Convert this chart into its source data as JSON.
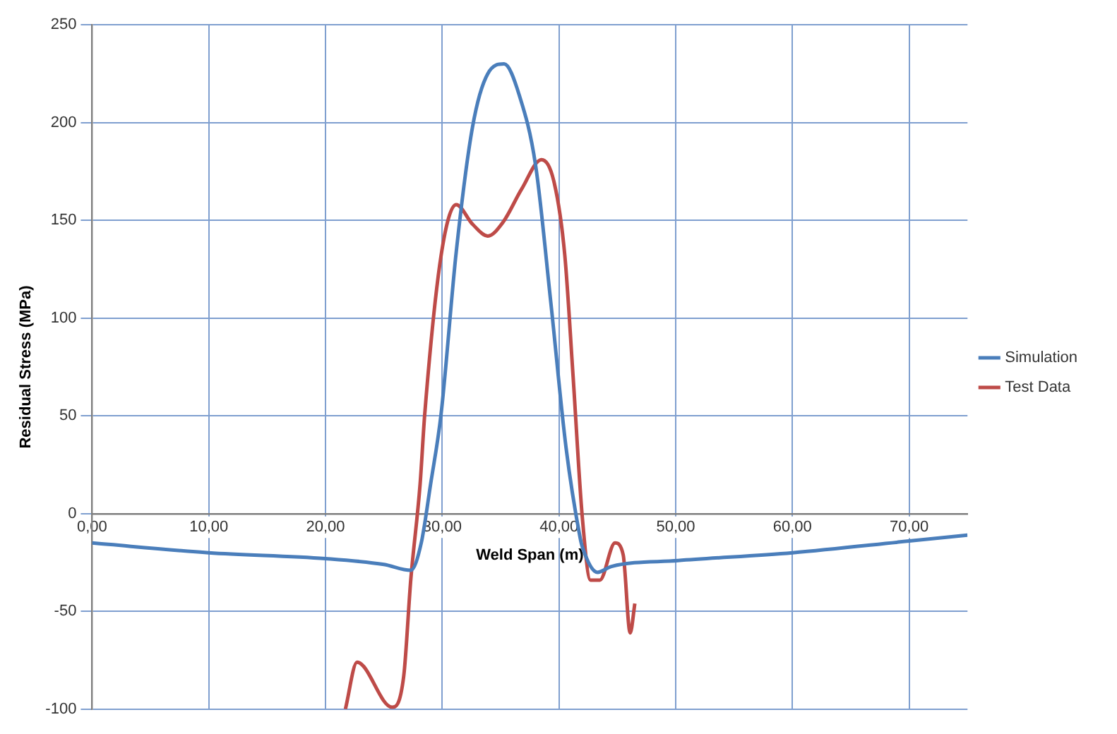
{
  "chart_data": {
    "type": "line",
    "xlabel": "Weld Span (m)",
    "ylabel": "Residual Stress (MPa)",
    "xlim": [
      0,
      75
    ],
    "ylim": [
      -100,
      250
    ],
    "xticks": [
      {
        "value": 0,
        "label": "0,00"
      },
      {
        "value": 10,
        "label": "10,00"
      },
      {
        "value": 20,
        "label": "20,00"
      },
      {
        "value": 30,
        "label": "30,00"
      },
      {
        "value": 40,
        "label": "40,00"
      },
      {
        "value": 50,
        "label": "50,00"
      },
      {
        "value": 60,
        "label": "60,00"
      },
      {
        "value": 70,
        "label": "70,00"
      }
    ],
    "yticks": [
      -100,
      -50,
      0,
      50,
      100,
      150,
      200,
      250
    ],
    "grid": true,
    "legend": "right",
    "marker": "none",
    "line_style": "solid",
    "series": [
      {
        "name": "Simulation",
        "color": "#4a7ebb",
        "x": [
          0,
          10,
          20,
          25,
          27.3,
          28.2,
          29,
          29.9,
          31.2,
          32.6,
          33.9,
          35.3,
          36.6,
          38,
          39.3,
          40.6,
          41.8,
          42,
          43.3,
          44.5,
          50.2,
          60,
          70,
          75
        ],
        "values": [
          -15,
          -20,
          -23,
          -26,
          -29,
          -15,
          15,
          51,
          134,
          198,
          225,
          230,
          214,
          178,
          108,
          34,
          -12,
          -17,
          -30,
          -27,
          -24,
          -20,
          -14,
          -11
        ]
      },
      {
        "name": "Test Data",
        "color": "#be4b48",
        "x": [
          21.7,
          22.7,
          25.7,
          26.7,
          27.3,
          28.1,
          28.5,
          29.9,
          31.2,
          32.6,
          33.9,
          35.2,
          36.8,
          38.5,
          39.6,
          40.5,
          41.2,
          42,
          42.7,
          43.5,
          44.8,
          45.5,
          46.1,
          46.5
        ],
        "values": [
          -100,
          -76,
          -99,
          -83,
          -34,
          15,
          51,
          132,
          158,
          148,
          142,
          149,
          166,
          181,
          169,
          132,
          71,
          -2,
          -34,
          -34,
          -15,
          -21,
          -61,
          -46
        ]
      }
    ]
  }
}
